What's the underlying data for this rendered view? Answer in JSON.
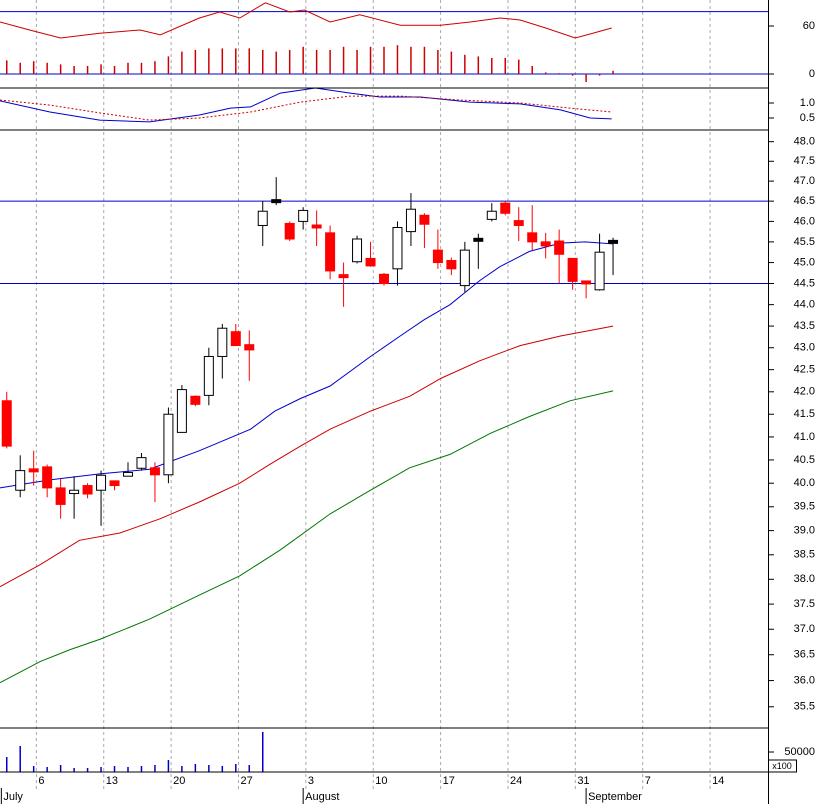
{
  "chart_data": [
    {
      "type": "line",
      "xlim": [
        -0.5,
        56.5
      ],
      "ylim": [
        -17.5,
        92.5
      ],
      "yticks": [
        0,
        60
      ],
      "hlines": [
        {
          "value": 78,
          "color": "#0000cc"
        },
        {
          "value": 0,
          "color": "#0000cc"
        }
      ],
      "series": [
        {
          "style": "bar",
          "color": "#cc0000",
          "values": [
            17,
            14,
            16,
            14,
            12,
            10,
            10,
            12,
            10,
            14,
            14,
            16,
            22,
            28,
            30,
            32,
            32,
            32,
            32,
            30,
            28,
            30,
            34,
            30,
            30,
            34,
            30,
            34,
            34,
            36,
            34,
            34,
            30,
            28,
            24,
            22,
            20,
            20,
            18,
            10,
            2,
            1,
            -2,
            -10,
            -2,
            4
          ]
        },
        {
          "style": "line",
          "color": "#cc0000",
          "x": [
            -0.5,
            1.7,
            4.0,
            6.9,
            9.9,
            11.4,
            14.3,
            15.8,
            17.3,
            19.2,
            21.0,
            22.1,
            24.0,
            26.2,
            29.2,
            32.2,
            34.4,
            36.6,
            38.1,
            40.0,
            42.2,
            43.3,
            44.9
          ],
          "values": [
            65,
            55,
            45,
            51,
            55,
            49,
            70,
            77.5,
            70,
            89,
            77.5,
            80,
            65,
            74,
            61,
            61,
            65,
            70,
            67.5,
            57.5,
            45,
            50,
            57.5
          ]
        }
      ]
    },
    {
      "type": "line",
      "xlim": [
        -0.5,
        56.5
      ],
      "ylim": [
        0.1,
        1.5
      ],
      "yticks": [
        {
          "value": 1,
          "label": "1.0"
        },
        {
          "value": 0.5,
          "label": "0.5"
        }
      ],
      "series": [
        {
          "style": "line",
          "color": "#0000cc",
          "x": [
            -0.5,
            3.2,
            6.9,
            10.6,
            14.3,
            16.6,
            18.1,
            20.3,
            22.9,
            25.5,
            27.7,
            30.7,
            34.4,
            38.1,
            41.1,
            43.3,
            44.9
          ],
          "values": [
            1.07,
            0.7,
            0.43,
            0.37,
            0.6,
            0.83,
            0.87,
            1.33,
            1.5,
            1.33,
            1.2,
            1.2,
            1.03,
            0.97,
            0.77,
            0.5,
            0.47
          ]
        },
        {
          "style": "dotted",
          "color": "#cc0000",
          "x": [
            -0.5,
            3.2,
            6.9,
            10.6,
            14.3,
            18.1,
            21.8,
            25.5,
            29.2,
            33.6,
            38.1,
            41.8,
            44.9
          ],
          "values": [
            1.1,
            0.93,
            0.67,
            0.43,
            0.5,
            0.7,
            1.03,
            1.23,
            1.23,
            1.1,
            1.0,
            0.83,
            0.7
          ]
        }
      ]
    },
    {
      "type": "candlestick",
      "log": true,
      "xlim": [
        -0.5,
        56.5
      ],
      "ylim": [
        35.1,
        48.3
      ],
      "yticks": [
        {
          "value": 48,
          "label": "48.0"
        },
        {
          "value": 47.5,
          "label": "47.5"
        },
        {
          "value": 47,
          "label": "47.0"
        },
        {
          "value": 46.5,
          "label": "46.5"
        },
        {
          "value": 46,
          "label": "46.0"
        },
        {
          "value": 45.5,
          "label": "45.5"
        },
        {
          "value": 45,
          "label": "45.0"
        },
        {
          "value": 44.5,
          "label": "44.5"
        },
        {
          "value": 44,
          "label": "44.0"
        },
        {
          "value": 43.5,
          "label": "43.5"
        },
        {
          "value": 43,
          "label": "43.0"
        },
        {
          "value": 42.5,
          "label": "42.5"
        },
        {
          "value": 42,
          "label": "42.0"
        },
        {
          "value": 41.5,
          "label": "41.5"
        },
        {
          "value": 41,
          "label": "41.0"
        },
        {
          "value": 40.5,
          "label": "40.5"
        },
        {
          "value": 40,
          "label": "40.0"
        },
        {
          "value": 39.5,
          "label": "39.5"
        },
        {
          "value": 39,
          "label": "39.0"
        },
        {
          "value": 38.5,
          "label": "38.5"
        },
        {
          "value": 38,
          "label": "38.0"
        },
        {
          "value": 37.5,
          "label": "37.5"
        },
        {
          "value": 37,
          "label": "37.0"
        },
        {
          "value": 36.5,
          "label": "36.5"
        },
        {
          "value": 36,
          "label": "36.0"
        },
        {
          "value": 35.5,
          "label": "35.5"
        }
      ],
      "hlines": [
        {
          "value": 46.5,
          "color": "#0000cc"
        },
        {
          "value": 44.5,
          "color": "#0000cc"
        }
      ],
      "up_color": "#ffffff",
      "down_color": "#ff0000",
      "flat_color": "#000000",
      "open": [
        41.8,
        39.85,
        40.3,
        40.35,
        39.9,
        39.78,
        39.95,
        39.85,
        40.05,
        40.15,
        40.32,
        40.33,
        40.18,
        41.1,
        41.9,
        41.92,
        42.8,
        43.37,
        43.07,
        45.9,
        46.5,
        45.95,
        46.0,
        45.9,
        45.72,
        44.7,
        45.02,
        45.1,
        44.72,
        44.85,
        45.75,
        46.15,
        45.3,
        45.05,
        44.45,
        45.55,
        46.05,
        46.45,
        46.02,
        45.72,
        45.5,
        45.52,
        45.1,
        44.55,
        44.35,
        45.5
      ],
      "high": [
        42.0,
        40.6,
        40.7,
        40.4,
        40.1,
        40.15,
        40.0,
        40.27,
        40.05,
        40.45,
        40.65,
        40.45,
        41.65,
        42.15,
        41.92,
        43.0,
        43.55,
        43.55,
        43.4,
        46.5,
        47.1,
        46.0,
        46.35,
        46.27,
        45.9,
        45.0,
        45.65,
        45.5,
        44.75,
        46.0,
        46.7,
        46.2,
        45.8,
        45.12,
        45.5,
        45.7,
        46.45,
        46.5,
        46.35,
        46.4,
        45.72,
        45.8,
        45.1,
        44.55,
        45.7,
        45.6
      ],
      "low": [
        40.75,
        39.7,
        39.95,
        39.7,
        39.25,
        39.25,
        39.68,
        39.1,
        39.85,
        40.15,
        40.27,
        39.6,
        40.0,
        41.1,
        41.68,
        41.7,
        42.3,
        43.05,
        42.25,
        45.4,
        46.4,
        45.52,
        45.8,
        45.4,
        44.6,
        43.95,
        44.98,
        44.9,
        44.45,
        44.45,
        45.4,
        45.35,
        44.85,
        44.7,
        44.3,
        44.85,
        46.0,
        46.15,
        45.52,
        45.3,
        45.1,
        44.5,
        44.35,
        44.15,
        44.33,
        44.7
      ],
      "close": [
        40.8,
        40.27,
        40.25,
        39.9,
        39.55,
        39.85,
        39.77,
        40.17,
        39.95,
        40.23,
        40.55,
        40.18,
        41.5,
        42.05,
        41.72,
        42.8,
        43.45,
        43.05,
        42.95,
        46.25,
        46.5,
        45.57,
        46.27,
        45.85,
        44.8,
        44.65,
        45.57,
        44.92,
        44.5,
        45.85,
        46.3,
        45.93,
        45.0,
        44.85,
        45.3,
        45.55,
        46.25,
        46.2,
        45.9,
        45.5,
        45.4,
        45.2,
        44.55,
        44.5,
        45.25,
        45.5
      ],
      "series": [
        {
          "style": "line",
          "color": "#0000cc",
          "x": [
            -0.5,
            3.2,
            6.9,
            10.6,
            14.3,
            18.1,
            19.9,
            21.8,
            24,
            27,
            29.2,
            31,
            32.9,
            35.1,
            36.6,
            38.8,
            41.1,
            42.9,
            45
          ],
          "values": [
            39.9,
            40.07,
            40.2,
            40.3,
            40.7,
            41.17,
            41.57,
            41.85,
            42.13,
            42.8,
            43.27,
            43.65,
            44.0,
            44.57,
            44.9,
            45.27,
            45.47,
            45.5,
            45.45
          ]
        },
        {
          "style": "line",
          "color": "#cc0000",
          "x": [
            -0.5,
            2.5,
            5.4,
            8.4,
            11.4,
            14.3,
            17.3,
            19.5,
            21.8,
            24,
            27,
            29.9,
            32.2,
            35.1,
            38.1,
            41.1,
            45
          ],
          "values": [
            37.85,
            38.3,
            38.8,
            38.95,
            39.25,
            39.6,
            40.0,
            40.4,
            40.8,
            41.17,
            41.57,
            41.9,
            42.3,
            42.7,
            43.05,
            43.27,
            43.5
          ]
        },
        {
          "style": "line",
          "color": "#007700",
          "x": [
            -0.5,
            2.5,
            4.7,
            6.9,
            10.6,
            14.3,
            17.3,
            20.3,
            24,
            27,
            29.9,
            32.9,
            35.9,
            38.8,
            41.8,
            45
          ],
          "values": [
            35.96,
            36.37,
            36.6,
            36.8,
            37.2,
            37.68,
            38.07,
            38.6,
            39.35,
            39.85,
            40.33,
            40.62,
            41.08,
            41.45,
            41.8,
            42.02
          ]
        }
      ]
    },
    {
      "type": "bar",
      "xlim": [
        -0.5,
        56.5
      ],
      "ylim": [
        0,
        110000
      ],
      "yticks": [
        50000
      ],
      "unit_label": "x100",
      "color": "#0000cc",
      "values": [
        37500,
        65000,
        15000,
        12500,
        17500,
        10000,
        10000,
        12500,
        15000,
        12500,
        15000,
        17500,
        30000,
        15000,
        20000,
        17500,
        15000,
        20000,
        17500,
        100000,
        null,
        null,
        null,
        null,
        null,
        null,
        null,
        null,
        null,
        null,
        null,
        null,
        null,
        null,
        null,
        null,
        null,
        null,
        null,
        null,
        null,
        null,
        null,
        null,
        null,
        null
      ],
      "xticks": [
        {
          "value": 2.2,
          "label": "6"
        },
        {
          "value": 7.2,
          "label": "13"
        },
        {
          "value": 12.2,
          "label": "20"
        },
        {
          "value": 17.2,
          "label": "27"
        },
        {
          "value": 22.2,
          "label": "3"
        },
        {
          "value": 27.2,
          "label": "10"
        },
        {
          "value": 32.2,
          "label": "17"
        },
        {
          "value": 37.2,
          "label": "24"
        },
        {
          "value": 42.2,
          "label": "31"
        },
        {
          "value": 47.2,
          "label": "7"
        },
        {
          "value": 52.2,
          "label": "14"
        }
      ],
      "months": [
        {
          "value": -0.4,
          "label": "July"
        },
        {
          "value": 22.0,
          "label": "August"
        },
        {
          "value": 43.0,
          "label": "September"
        }
      ]
    }
  ]
}
